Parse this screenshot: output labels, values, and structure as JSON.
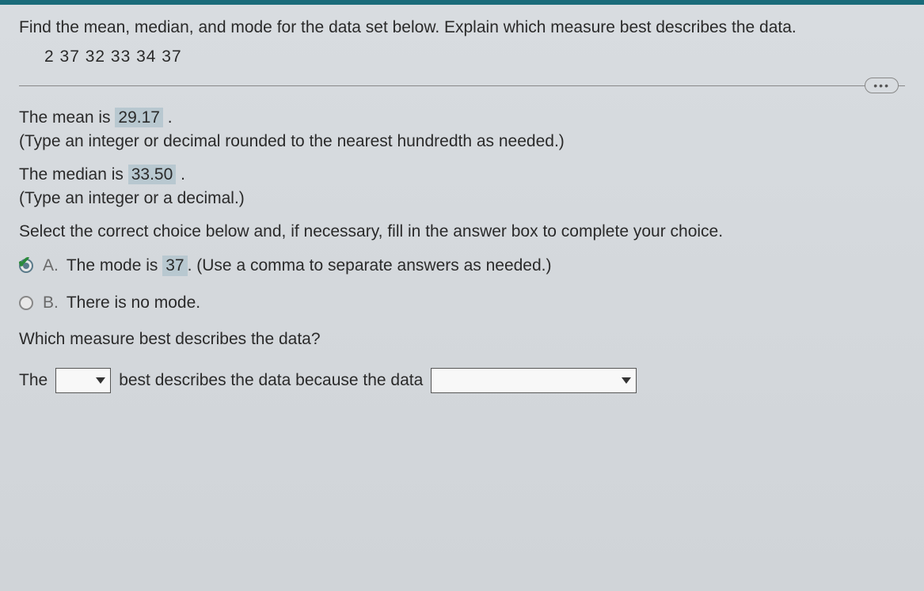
{
  "question": {
    "prompt": "Find the mean, median, and mode for the data set below. Explain which measure best describes the data.",
    "data_values": "2  37  32  33  34  37"
  },
  "mean": {
    "label_prefix": "The mean is ",
    "value": "29.17",
    "label_suffix": " .",
    "hint": "(Type an integer or decimal rounded to the nearest hundredth as needed.)"
  },
  "median": {
    "label_prefix": "The median is ",
    "value": "33.50",
    "label_suffix": " .",
    "hint": "(Type an integer or a decimal.)"
  },
  "instruction": "Select the correct choice below and, if necessary, fill in the answer box to complete your choice.",
  "choices": {
    "a": {
      "letter": "A.",
      "text_prefix": "The mode is ",
      "value": "37",
      "text_suffix": " . (Use a comma to separate answers as needed.)",
      "selected": true
    },
    "b": {
      "letter": "B.",
      "text": "There is no mode.",
      "selected": false
    }
  },
  "final": {
    "question": "Which measure best describes the data?",
    "sentence_part1": "The",
    "sentence_part2": "best describes the data because the data"
  },
  "colors": {
    "top_bar": "#1a6b7a",
    "background": "#d8dce0",
    "text": "#2a2a2a",
    "highlight": "#b8c8d0",
    "checkmark": "#2a8a3a",
    "border": "#888"
  }
}
